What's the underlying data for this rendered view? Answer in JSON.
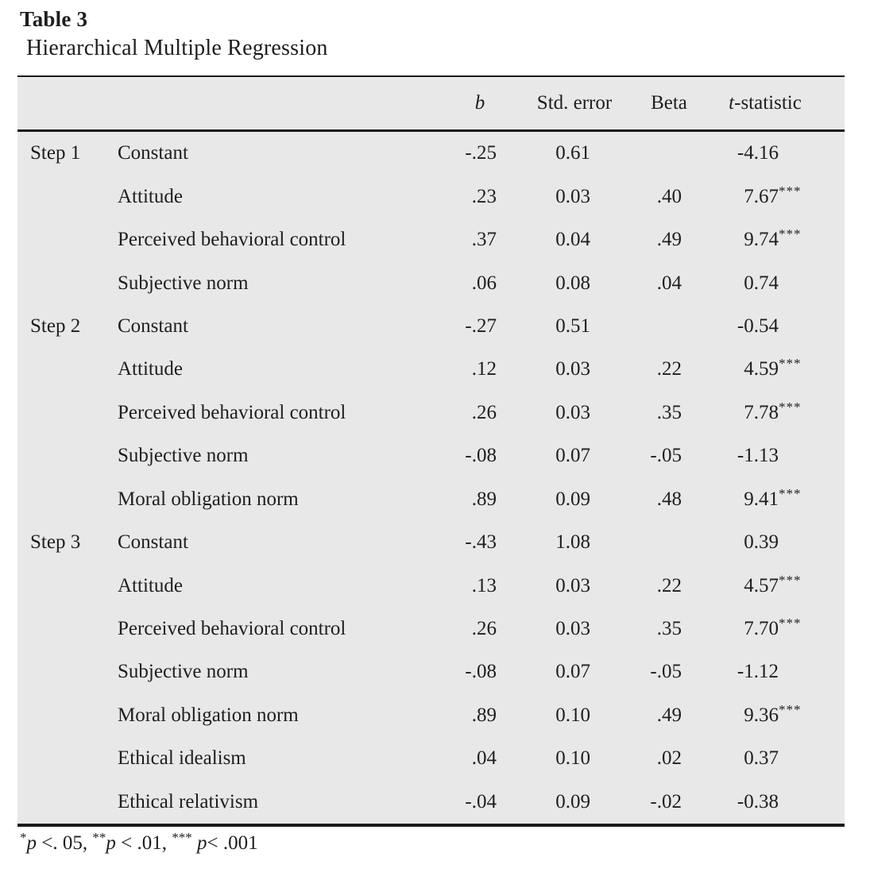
{
  "page": {
    "title": "Table 3",
    "subtitle": "Hierarchical Multiple Regression"
  },
  "colors": {
    "table_background": "#e8e8e8",
    "rule": "#1b1b1b",
    "text": "#1e1e1e"
  },
  "table": {
    "headers": {
      "b": "b",
      "std_error": "Std. error",
      "beta": "Beta",
      "t_italic": "t",
      "t_rest": "-statistic"
    },
    "rows": [
      {
        "step": "Step 1",
        "variable": "Constant",
        "b": "-.25",
        "se": "0.61",
        "beta": "",
        "t": "-4.16",
        "stars": ""
      },
      {
        "step": "",
        "variable": "Attitude",
        "b": ".23",
        "se": "0.03",
        "beta": ".40",
        "t": "7.67",
        "stars": "***"
      },
      {
        "step": "",
        "variable": "Perceived behavioral control",
        "b": ".37",
        "se": "0.04",
        "beta": ".49",
        "t": "9.74",
        "stars": "***"
      },
      {
        "step": "",
        "variable": "Subjective norm",
        "b": ".06",
        "se": "0.08",
        "beta": ".04",
        "t": "0.74",
        "stars": ""
      },
      {
        "step": "Step 2",
        "variable": "Constant",
        "b": "-.27",
        "se": "0.51",
        "beta": "",
        "t": "-0.54",
        "stars": ""
      },
      {
        "step": "",
        "variable": "Attitude",
        "b": ".12",
        "se": "0.03",
        "beta": ".22",
        "t": "4.59",
        "stars": "***"
      },
      {
        "step": "",
        "variable": "Perceived behavioral control",
        "b": ".26",
        "se": "0.03",
        "beta": ".35",
        "t": "7.78",
        "stars": "***"
      },
      {
        "step": "",
        "variable": "Subjective norm",
        "b": "-.08",
        "se": "0.07",
        "beta": "-.05",
        "t": "-1.13",
        "stars": ""
      },
      {
        "step": "",
        "variable": "Moral obligation norm",
        "b": ".89",
        "se": "0.09",
        "beta": ".48",
        "t": "9.41",
        "stars": "***"
      },
      {
        "step": "Step 3",
        "variable": "Constant",
        "b": "-.43",
        "se": "1.08",
        "beta": "",
        "t": "0.39",
        "stars": ""
      },
      {
        "step": "",
        "variable": "Attitude",
        "b": ".13",
        "se": "0.03",
        "beta": ".22",
        "t": "4.57",
        "stars": "***"
      },
      {
        "step": "",
        "variable": "Perceived behavioral control",
        "b": ".26",
        "se": "0.03",
        "beta": ".35",
        "t": "7.70",
        "stars": "***"
      },
      {
        "step": "",
        "variable": "Subjective norm",
        "b": "-.08",
        "se": "0.07",
        "beta": "-.05",
        "t": "-1.12",
        "stars": ""
      },
      {
        "step": "",
        "variable": "Moral obligation norm",
        "b": ".89",
        "se": "0.10",
        "beta": ".49",
        "t": "9.36",
        "stars": "***"
      },
      {
        "step": "",
        "variable": "Ethical idealism",
        "b": ".04",
        "se": "0.10",
        "beta": ".02",
        "t": "0.37",
        "stars": ""
      },
      {
        "step": "",
        "variable": "Ethical relativism",
        "b": "-.04",
        "se": "0.09",
        "beta": "-.02",
        "t": "-0.38",
        "stars": ""
      }
    ]
  },
  "footnote": {
    "s1_stars": "*",
    "s1_p": "p",
    "s1_rest": " <. 05, ",
    "s2_stars": "**",
    "s2_p": "p",
    "s2_rest": " < .01, ",
    "s3_stars": "***",
    "s3_p": " p",
    "s3_rest": "< .001"
  }
}
